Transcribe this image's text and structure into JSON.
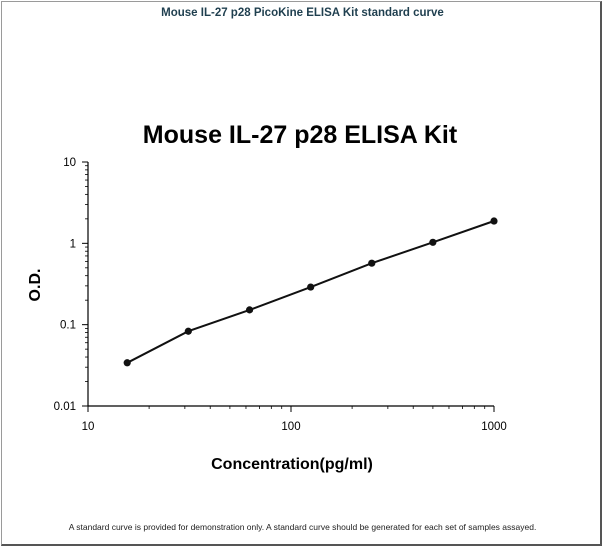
{
  "page": {
    "title": "Mouse IL-27 p28 PicoKine ELISA Kit standard curve",
    "footnote": "A standard curve is provided for demonstration only. A standard curve should be generated for each set of samples assayed."
  },
  "chart_data": {
    "type": "scatter",
    "title": "Mouse IL-27 p28 ELISA Kit",
    "xlabel": "Concentration(pg/ml)",
    "ylabel": "O.D.",
    "x_scale": "log",
    "y_scale": "log",
    "xlim": [
      10,
      1000
    ],
    "ylim": [
      0.01,
      10
    ],
    "x_ticks": [
      10,
      100,
      1000
    ],
    "x_tick_labels": [
      "10",
      "100",
      "1000"
    ],
    "y_ticks": [
      0.01,
      0.1,
      1,
      10
    ],
    "y_tick_labels": [
      "0.01",
      "0.1",
      "1",
      "10"
    ],
    "grid": false,
    "legend": false,
    "series": [
      {
        "x": [
          15.6,
          31.2,
          62.5,
          125,
          250,
          500,
          1000
        ],
        "y": [
          0.034,
          0.083,
          0.152,
          0.29,
          0.57,
          1.03,
          1.88
        ]
      }
    ],
    "trendline": true,
    "colors": {
      "points": "#111111",
      "line": "#111111"
    }
  }
}
